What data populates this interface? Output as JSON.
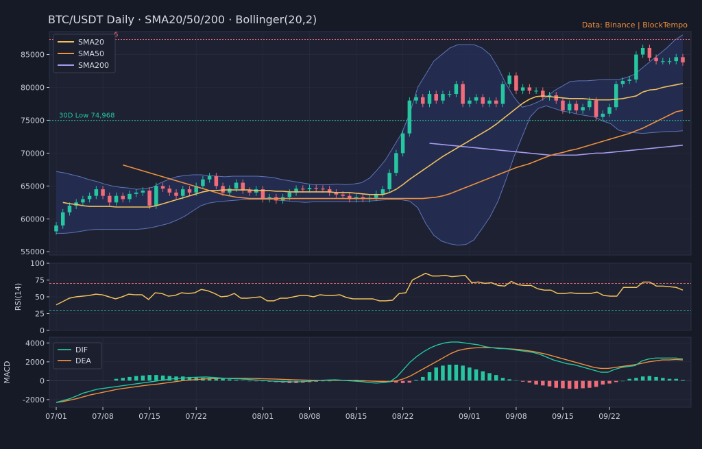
{
  "header": {
    "title": "BTC/USDT Daily  ·  SMA20/50/200  ·  Bollinger(20,2)",
    "source": "Data: Binance  |  BlockTempo"
  },
  "colors": {
    "bg": "#161a26",
    "panel": "#1d2131",
    "grid": "#2a2f42",
    "axis_text": "#c9ccd6",
    "up": "#26c6a0",
    "down": "#f06c7a",
    "sma20": "#f2c15c",
    "sma50": "#f0913e",
    "sma200": "#a99cf0",
    "band_edge": "#5f74b8",
    "band_fill": "#25305a",
    "dif": "#26c6a0",
    "dea": "#f0913e",
    "source": "#f0913e"
  },
  "chart_data": [
    {
      "type": "candlestick",
      "title": "BTC/USDT Daily",
      "xlabel": "",
      "ylabel": "",
      "x_ticks": [
        "07/01",
        "07/08",
        "07/15",
        "07/22",
        "08/01",
        "08/08",
        "08/15",
        "08/22",
        "09/01",
        "09/08",
        "09/15",
        "09/22"
      ],
      "x_tick_index": [
        0,
        7,
        14,
        21,
        31,
        38,
        45,
        52,
        62,
        69,
        76,
        83
      ],
      "ylim": [
        54500,
        88500
      ],
      "y_ticks": [
        55000,
        60000,
        65000,
        70000,
        75000,
        80000,
        85000
      ],
      "legend": {
        "position": "top-left",
        "entries": [
          "SMA20",
          "SMA50",
          "SMA200"
        ]
      },
      "reference_lines": [
        {
          "label": "30D Low 74,968",
          "value": 74968,
          "color": "#26c6a0"
        },
        {
          "label": "6",
          "value": 87300,
          "color": "#f06c7a"
        }
      ],
      "ohlc_close": [
        59000,
        61000,
        62000,
        62500,
        63000,
        63500,
        64500,
        63500,
        62500,
        63500,
        63000,
        63800,
        64000,
        64300,
        62000,
        65000,
        64600,
        64000,
        63500,
        64500,
        64000,
        65000,
        66000,
        66500,
        65000,
        64000,
        64600,
        65500,
        64300,
        64000,
        64500,
        63000,
        63300,
        62800,
        63300,
        64000,
        64600,
        64500,
        64700,
        64600,
        64500,
        64000,
        63700,
        63500,
        63000,
        63300,
        63000,
        63200,
        63800,
        64500,
        67000,
        70000,
        73000,
        78000,
        78500,
        77500,
        79000,
        78000,
        79000,
        79000,
        80500,
        77500,
        78000,
        78500,
        77500,
        78000,
        77500,
        80500,
        81800,
        79500,
        80000,
        79500,
        79500,
        78500,
        78800,
        78000,
        76500,
        77500,
        76500,
        77000,
        78000,
        75500,
        76000,
        77000,
        80500,
        81000,
        81200,
        85000,
        86000,
        84500,
        84000,
        84000,
        84000,
        84600,
        83800
      ],
      "sma20": [
        62500,
        62300,
        62200,
        62000,
        61900,
        61900,
        61900,
        61900,
        61800,
        61800,
        61800,
        61800,
        61800,
        61800,
        62000,
        62300,
        62600,
        62900,
        63200,
        63500,
        63800,
        64100,
        64300,
        64300,
        64400,
        64400,
        64400,
        64400,
        64400,
        64300,
        64300,
        64300,
        64200,
        64200,
        64100,
        64100,
        64100,
        64100,
        64100,
        64100,
        64100,
        64000,
        64000,
        64000,
        63900,
        63800,
        63700,
        63700,
        63700,
        64000,
        64500,
        65200,
        66000,
        66700,
        67400,
        68100,
        68800,
        69500,
        70100,
        70700,
        71300,
        71900,
        72500,
        73100,
        73700,
        74400,
        75200,
        76000,
        76800,
        77600,
        78200,
        78600,
        78700,
        78600,
        78500,
        78400,
        78300,
        78300,
        78300,
        78200,
        78100,
        78100,
        78100,
        78200,
        78300,
        78500,
        78700,
        79300,
        79600,
        79700,
        80000,
        80200,
        80400,
        80600
      ],
      "sma50": [
        68200,
        67900,
        67600,
        67300,
        67000,
        66700,
        66400,
        66100,
        65800,
        65500,
        65200,
        64900,
        64600,
        64300,
        64000,
        63700,
        63500,
        63300,
        63200,
        63100,
        63100,
        63100,
        63100,
        63100,
        63100,
        63100,
        63100,
        63100,
        63100,
        63100,
        63100,
        63100,
        63100,
        63100,
        63100,
        63100,
        63100,
        63100,
        63100,
        63100,
        63100,
        63100,
        63100,
        63100,
        63100,
        63100,
        63200,
        63300,
        63500,
        63800,
        64200,
        64600,
        65000,
        65400,
        65800,
        66200,
        66600,
        67000,
        67400,
        67800,
        68100,
        68400,
        68800,
        69200,
        69600,
        69900,
        70100,
        70400,
        70600,
        70900,
        71200,
        71500,
        71800,
        72100,
        72400,
        72700,
        73000,
        73400,
        73800,
        74300,
        74800,
        75300,
        75800,
        76300,
        76500
      ],
      "sma200": [
        71500,
        71400,
        71300,
        71200,
        71100,
        71000,
        70900,
        70800,
        70700,
        70600,
        70500,
        70400,
        70300,
        70200,
        70100,
        70000,
        69900,
        69800,
        69700,
        69700,
        69700,
        69700,
        69700,
        69800,
        69900,
        70000,
        70000,
        70100,
        70200,
        70300,
        70400,
        70500,
        70600,
        70700,
        70800,
        70900,
        71000,
        71100,
        71200
      ],
      "bollinger_upper": [
        67200,
        67000,
        66700,
        66400,
        66000,
        65700,
        65300,
        65000,
        64800,
        64700,
        64500,
        64600,
        64800,
        65500,
        66000,
        66400,
        66600,
        66700,
        66700,
        66600,
        66500,
        66400,
        66500,
        66500,
        66500,
        66500,
        66400,
        66300,
        66000,
        65800,
        65600,
        65400,
        65200,
        65200,
        65200,
        65300,
        65200,
        65300,
        65500,
        66200,
        67500,
        69000,
        71000,
        73000,
        76000,
        80000,
        82000,
        84000,
        85000,
        86000,
        86500,
        86500,
        86500,
        86000,
        85000,
        83000,
        80500,
        78500,
        77000,
        77300,
        77800,
        78500,
        79500,
        80200,
        80900,
        81000,
        81000,
        81100,
        81200,
        81200,
        81200,
        81500,
        82000,
        83000,
        84000,
        85000,
        86000,
        87200,
        88000
      ],
      "bollinger_lower": [
        57800,
        57800,
        57900,
        58100,
        58300,
        58400,
        58400,
        58400,
        58400,
        58400,
        58400,
        58500,
        58700,
        59000,
        59300,
        59800,
        60400,
        61200,
        62000,
        62400,
        62600,
        62700,
        62800,
        62900,
        62900,
        62900,
        62900,
        62900,
        62800,
        62700,
        62600,
        62500,
        62600,
        62600,
        62600,
        62600,
        62600,
        62600,
        62700,
        62700,
        62800,
        62900,
        62900,
        62900,
        62700,
        61700,
        59300,
        57500,
        56600,
        56200,
        56000,
        56100,
        56800,
        58500,
        60300,
        62700,
        66000,
        69500,
        72500,
        75500,
        76800,
        77200,
        76800,
        76400,
        76200,
        75900,
        75700,
        75500,
        74900,
        74500,
        73500,
        73200,
        73100,
        73000,
        73100,
        73200,
        73300,
        73300,
        73400
      ]
    },
    {
      "type": "line",
      "ylabel": "RSI(14)",
      "ylim": [
        0,
        100
      ],
      "y_ticks": [
        0,
        25,
        50,
        75,
        100
      ],
      "reference_lines": [
        {
          "value": 70,
          "color": "#f06c7a"
        },
        {
          "value": 30,
          "color": "#26c6a0"
        }
      ],
      "values": [
        38,
        43,
        48,
        50,
        51,
        52,
        54,
        53,
        50,
        47,
        50,
        54,
        53,
        53,
        46,
        56,
        55,
        51,
        52,
        56,
        55,
        56,
        61,
        59,
        55,
        50,
        51,
        55,
        48,
        48,
        49,
        50,
        44,
        44,
        48,
        48,
        50,
        52,
        52,
        50,
        53,
        52,
        52,
        53,
        49,
        47,
        47,
        47,
        47,
        44,
        44,
        45,
        55,
        56,
        75,
        80,
        85,
        81,
        81,
        82,
        80,
        81,
        82,
        71,
        72,
        70,
        71,
        67,
        66,
        73,
        68,
        67,
        67,
        62,
        60,
        60,
        55,
        55,
        56,
        55,
        55,
        55,
        57,
        52,
        51,
        51,
        64,
        64,
        64,
        72,
        72,
        66,
        66,
        65,
        64,
        60
      ]
    },
    {
      "type": "bar+line",
      "ylabel": "MACD",
      "ylim": [
        -2800,
        4600
      ],
      "y_ticks": [
        -2000,
        0,
        2000,
        4000
      ],
      "legend": {
        "position": "top-left",
        "entries": [
          "DIF",
          "DEA"
        ]
      },
      "dif": [
        -2300,
        -2100,
        -1900,
        -1600,
        -1300,
        -1100,
        -900,
        -800,
        -700,
        -600,
        -500,
        -400,
        -300,
        -200,
        -100,
        0,
        100,
        200,
        250,
        300,
        350,
        380,
        400,
        350,
        300,
        250,
        220,
        200,
        150,
        100,
        50,
        0,
        -50,
        -80,
        -100,
        -120,
        -100,
        -50,
        0,
        50,
        80,
        100,
        50,
        0,
        -50,
        -100,
        -200,
        -250,
        -200,
        -100,
        400,
        1200,
        2000,
        2600,
        3100,
        3500,
        3800,
        4000,
        4100,
        4100,
        4000,
        3900,
        3800,
        3600,
        3500,
        3400,
        3400,
        3300,
        3200,
        3100,
        3000,
        2800,
        2500,
        2200,
        2000,
        1800,
        1700,
        1500,
        1300,
        1100,
        900,
        900,
        1200,
        1400,
        1500,
        1600,
        2100,
        2300,
        2400,
        2400,
        2400,
        2400,
        2300
      ],
      "dea": [
        -2300,
        -2200,
        -2050,
        -1900,
        -1700,
        -1500,
        -1350,
        -1200,
        -1050,
        -900,
        -800,
        -700,
        -600,
        -500,
        -420,
        -350,
        -250,
        -150,
        -50,
        50,
        100,
        150,
        200,
        230,
        250,
        260,
        260,
        255,
        250,
        240,
        220,
        200,
        180,
        150,
        120,
        100,
        80,
        60,
        50,
        40,
        40,
        50,
        40,
        30,
        20,
        0,
        -30,
        -60,
        -80,
        -80,
        0,
        200,
        500,
        900,
        1300,
        1700,
        2100,
        2500,
        2900,
        3200,
        3350,
        3450,
        3500,
        3500,
        3500,
        3450,
        3400,
        3350,
        3300,
        3200,
        3100,
        2950,
        2800,
        2600,
        2400,
        2200,
        2000,
        1800,
        1600,
        1400,
        1300,
        1300,
        1400,
        1500,
        1600,
        1700,
        1850,
        2000,
        2100,
        2200,
        2200,
        2250,
        2200
      ],
      "histogram": [
        200,
        300,
        400,
        500,
        550,
        600,
        600,
        550,
        500,
        450,
        450,
        400,
        350,
        300,
        300,
        250,
        200,
        150,
        100,
        50,
        0,
        -50,
        0,
        -100,
        -150,
        -200,
        -250,
        -250,
        -200,
        -150,
        -100,
        -50,
        0,
        50,
        80,
        100,
        100,
        50,
        0,
        -50,
        -100,
        -150,
        -200,
        -250,
        -200,
        100,
        400,
        900,
        1400,
        1600,
        1700,
        1700,
        1600,
        1400,
        1200,
        1000,
        800,
        600,
        300,
        150,
        50,
        -100,
        -200,
        -400,
        -500,
        -600,
        -750,
        -800,
        -850,
        -850,
        -800,
        -750,
        -650,
        -400,
        -300,
        -150,
        0,
        200,
        300,
        450,
        500,
        400,
        300,
        200,
        200,
        100
      ]
    }
  ]
}
